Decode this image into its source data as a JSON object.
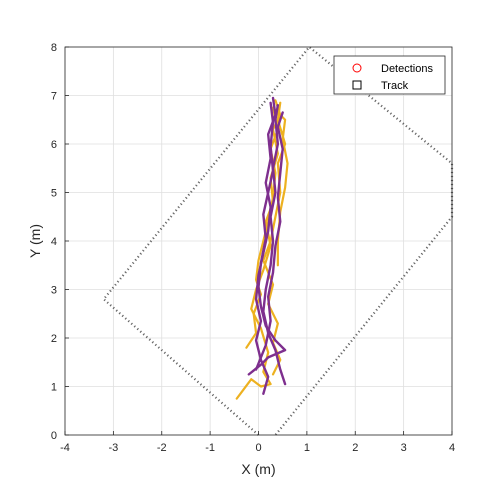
{
  "chart_data": {
    "type": "line",
    "title": "",
    "xlabel": "X (m)",
    "ylabel": "Y (m)",
    "xlim": [
      -4,
      4
    ],
    "ylim": [
      0,
      8
    ],
    "xticks": [
      -4,
      -3,
      -2,
      -1,
      0,
      1,
      2,
      3,
      4
    ],
    "yticks": [
      0,
      1,
      2,
      3,
      4,
      5,
      6,
      7,
      8
    ],
    "xtick_labels": [
      "-4",
      "-3",
      "-2",
      "-1",
      "0",
      "1",
      "2",
      "3",
      "4"
    ],
    "ytick_labels": [
      "0",
      "1",
      "2",
      "3",
      "4",
      "5",
      "6",
      "7",
      "8"
    ],
    "grid": true,
    "legend": {
      "position": "top-right",
      "entries": [
        {
          "label": "Detections",
          "marker": "circle",
          "color": "#ff0000"
        },
        {
          "label": "Track",
          "marker": "square",
          "color": "#000000"
        }
      ]
    },
    "coverage_area": {
      "style": "dotted",
      "color": "#666666",
      "points": [
        [
          0,
          0
        ],
        [
          -3.2,
          2.8
        ],
        [
          1.05,
          8.0
        ],
        [
          4,
          5.6
        ],
        [
          4,
          4.5
        ],
        [
          0.35,
          0
        ]
      ]
    },
    "colors": {
      "detections": "#edb120",
      "track": "#7e2f8e"
    },
    "detection_paths": [
      [
        [
          -0.45,
          0.75
        ],
        [
          -0.3,
          0.95
        ],
        [
          -0.15,
          1.15
        ],
        [
          0.05,
          1.0
        ],
        [
          0.25,
          1.05
        ],
        [
          0.1,
          1.3
        ],
        [
          0.2,
          1.7
        ],
        [
          0.05,
          2.2
        ],
        [
          -0.15,
          2.6
        ],
        [
          -0.05,
          3.0
        ],
        [
          0.1,
          3.4
        ],
        [
          0.25,
          3.9
        ],
        [
          0.15,
          4.4
        ],
        [
          0.3,
          4.8
        ],
        [
          0.25,
          5.3
        ],
        [
          0.4,
          5.8
        ],
        [
          0.3,
          6.3
        ],
        [
          0.45,
          6.6
        ],
        [
          0.35,
          6.9
        ]
      ],
      [
        [
          0.3,
          1.25
        ],
        [
          0.45,
          1.55
        ],
        [
          0.3,
          1.9
        ],
        [
          0.4,
          2.3
        ],
        [
          0.2,
          2.7
        ],
        [
          0.3,
          3.1
        ],
        [
          0.1,
          3.6
        ],
        [
          0.25,
          4.0
        ],
        [
          0.35,
          4.5
        ],
        [
          0.45,
          5.0
        ],
        [
          0.4,
          5.6
        ],
        [
          0.55,
          6.0
        ],
        [
          0.4,
          6.5
        ],
        [
          0.45,
          6.85
        ]
      ],
      [
        [
          -0.25,
          1.8
        ],
        [
          -0.05,
          2.1
        ],
        [
          -0.1,
          2.5
        ],
        [
          0.05,
          2.9
        ],
        [
          -0.05,
          3.2
        ],
        [
          0.0,
          3.6
        ],
        [
          0.1,
          4.0
        ],
        [
          0.2,
          4.4
        ],
        [
          0.3,
          4.9
        ],
        [
          0.35,
          5.4
        ],
        [
          0.25,
          5.9
        ],
        [
          0.4,
          6.3
        ],
        [
          0.3,
          6.75
        ]
      ],
      [
        [
          0.4,
          3.5
        ],
        [
          0.4,
          4.0
        ],
        [
          0.45,
          4.6
        ],
        [
          0.55,
          5.1
        ],
        [
          0.6,
          5.6
        ],
        [
          0.5,
          6.1
        ],
        [
          0.55,
          6.5
        ],
        [
          0.35,
          6.7
        ]
      ]
    ],
    "track_paths": [
      [
        [
          0.55,
          1.05
        ],
        [
          0.45,
          1.35
        ],
        [
          0.35,
          1.75
        ],
        [
          0.2,
          2.1
        ],
        [
          0.1,
          2.55
        ],
        [
          0.15,
          3.0
        ],
        [
          0.25,
          3.5
        ],
        [
          0.3,
          4.0
        ],
        [
          0.25,
          4.5
        ],
        [
          0.35,
          5.0
        ],
        [
          0.3,
          5.5
        ],
        [
          0.4,
          6.0
        ],
        [
          0.35,
          6.5
        ],
        [
          0.4,
          6.8
        ]
      ],
      [
        [
          0.1,
          0.85
        ],
        [
          0.2,
          1.2
        ],
        [
          0.05,
          1.55
        ],
        [
          -0.05,
          1.95
        ],
        [
          0.05,
          2.35
        ],
        [
          -0.05,
          2.8
        ],
        [
          0.0,
          3.3
        ],
        [
          0.1,
          3.75
        ],
        [
          0.2,
          4.2
        ],
        [
          0.25,
          4.7
        ],
        [
          0.15,
          5.2
        ],
        [
          0.25,
          5.7
        ],
        [
          0.2,
          6.2
        ],
        [
          0.35,
          6.6
        ],
        [
          0.3,
          6.95
        ]
      ],
      [
        [
          -0.2,
          1.25
        ],
        [
          0.05,
          1.45
        ],
        [
          0.2,
          1.6
        ],
        [
          0.55,
          1.75
        ],
        [
          0.35,
          1.95
        ],
        [
          0.15,
          2.25
        ],
        [
          0.05,
          2.65
        ],
        [
          0.0,
          3.05
        ],
        [
          0.05,
          3.55
        ],
        [
          0.15,
          4.05
        ],
        [
          0.1,
          4.55
        ],
        [
          0.2,
          5.0
        ],
        [
          0.3,
          5.45
        ],
        [
          0.25,
          5.95
        ],
        [
          0.3,
          6.45
        ],
        [
          0.25,
          6.85
        ]
      ],
      [
        [
          -0.05,
          1.35
        ],
        [
          0.15,
          1.85
        ],
        [
          0.25,
          2.35
        ],
        [
          0.2,
          2.85
        ],
        [
          0.3,
          3.35
        ],
        [
          0.35,
          3.9
        ],
        [
          0.45,
          4.4
        ],
        [
          0.4,
          4.9
        ],
        [
          0.45,
          5.4
        ],
        [
          0.5,
          5.9
        ],
        [
          0.4,
          6.35
        ],
        [
          0.5,
          6.65
        ]
      ]
    ]
  }
}
